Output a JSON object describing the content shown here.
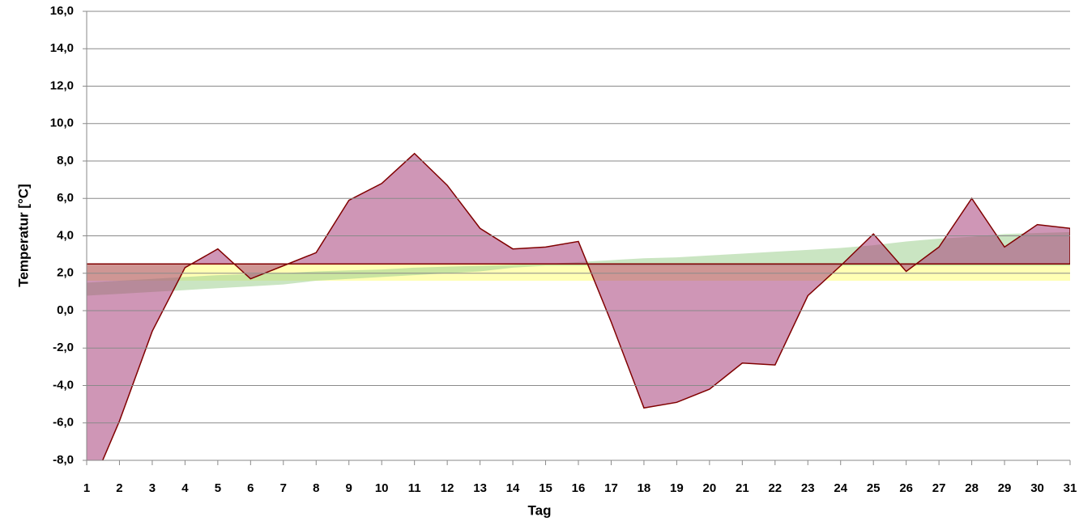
{
  "chart_data": {
    "type": "area",
    "x_label": "Tag",
    "y_label": "Temperatur [°C]",
    "x": [
      1,
      2,
      3,
      4,
      5,
      6,
      7,
      8,
      9,
      10,
      11,
      12,
      13,
      14,
      15,
      16,
      17,
      18,
      19,
      20,
      21,
      22,
      23,
      24,
      25,
      26,
      27,
      28,
      29,
      30,
      31
    ],
    "xlim": [
      1,
      31
    ],
    "ylim": [
      -8,
      16
    ],
    "yticks": [
      {
        "value": -8,
        "label": "-8,0"
      },
      {
        "value": -6,
        "label": "-6,0"
      },
      {
        "value": -4,
        "label": "-4,0"
      },
      {
        "value": -2,
        "label": "-2,0"
      },
      {
        "value": 0,
        "label": "0,0"
      },
      {
        "value": 2,
        "label": "2,0"
      },
      {
        "value": 4,
        "label": "4,0"
      },
      {
        "value": 6,
        "label": "6,0"
      },
      {
        "value": 8,
        "label": "8,0"
      },
      {
        "value": 10,
        "label": "10,0"
      },
      {
        "value": 12,
        "label": "12,0"
      },
      {
        "value": 14,
        "label": "14,0"
      },
      {
        "value": 16,
        "label": "16,0"
      }
    ],
    "grid": true,
    "bands": [
      {
        "color": "#ffffb4",
        "lower": 1.6,
        "upper": 2.5
      },
      {
        "color": "#9fd08f",
        "upper": [
          1.5,
          1.6,
          1.7,
          1.8,
          1.9,
          1.95,
          2.0,
          2.1,
          2.15,
          2.2,
          2.3,
          2.35,
          2.4,
          2.45,
          2.5,
          2.6,
          2.7,
          2.8,
          2.85,
          2.95,
          3.05,
          3.15,
          3.25,
          3.35,
          3.5,
          3.7,
          3.85,
          3.95,
          4.1,
          4.15,
          4.2
        ],
        "lower": [
          0.8,
          0.9,
          1.0,
          1.1,
          1.2,
          1.3,
          1.4,
          1.6,
          1.7,
          1.8,
          1.9,
          2.0,
          2.1,
          2.3,
          2.4,
          2.4,
          2.4,
          2.4,
          2.4,
          2.4,
          2.4,
          2.4,
          2.4,
          2.4,
          2.4,
          2.4,
          2.4,
          2.4,
          2.4,
          2.4,
          2.4
        ]
      }
    ],
    "reference": 2.5,
    "series": [
      {
        "color": "#800000",
        "fill": "#a8407a",
        "values": [
          -10,
          -5.9,
          -1.1,
          2.3,
          3.3,
          1.7,
          2.4,
          3.1,
          5.9,
          6.8,
          8.4,
          6.7,
          4.4,
          3.3,
          3.4,
          3.7,
          -0.6,
          -5.2,
          -4.9,
          -4.2,
          -2.8,
          -2.9,
          0.8,
          2.4,
          4.1,
          2.1,
          3.4,
          6.0,
          3.4,
          4.6,
          4.4
        ]
      }
    ]
  }
}
